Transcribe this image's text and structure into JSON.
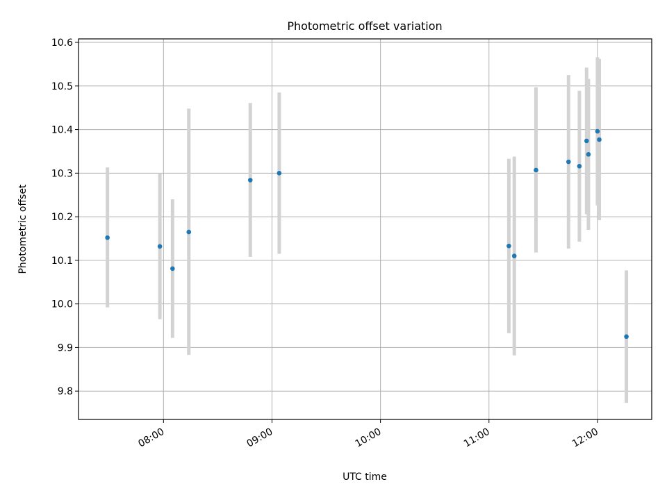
{
  "chart_data": {
    "type": "scatter",
    "title": "Photometric offset variation",
    "xlabel": "UTC time",
    "ylabel": "Photometric offset",
    "x_axis_type": "time",
    "xlim": [
      "07:13",
      "12:30"
    ],
    "ylim": [
      9.735,
      10.608
    ],
    "x_ticks": [
      "08:00",
      "09:00",
      "10:00",
      "11:00",
      "12:00"
    ],
    "y_ticks": [
      "9.8",
      "9.9",
      "10.0",
      "10.1",
      "10.2",
      "10.3",
      "10.4",
      "10.5",
      "10.6"
    ],
    "grid": true,
    "legend": "none",
    "point_color": "#1f77b4",
    "error_bar_color": "#d3d3d3",
    "points": [
      {
        "x": "07:29",
        "y": 10.152,
        "y_low": 9.992,
        "y_high": 10.313
      },
      {
        "x": "07:58",
        "y": 10.132,
        "y_low": 9.965,
        "y_high": 10.3
      },
      {
        "x": "08:05",
        "y": 10.081,
        "y_low": 9.922,
        "y_high": 10.24
      },
      {
        "x": "08:14",
        "y": 10.165,
        "y_low": 9.883,
        "y_high": 10.448
      },
      {
        "x": "08:48",
        "y": 10.284,
        "y_low": 10.108,
        "y_high": 10.461
      },
      {
        "x": "09:04",
        "y": 10.3,
        "y_low": 10.115,
        "y_high": 10.485
      },
      {
        "x": "11:11",
        "y": 10.133,
        "y_low": 9.933,
        "y_high": 10.333
      },
      {
        "x": "11:14",
        "y": 10.11,
        "y_low": 9.882,
        "y_high": 10.338
      },
      {
        "x": "11:26",
        "y": 10.307,
        "y_low": 10.118,
        "y_high": 10.497
      },
      {
        "x": "11:44",
        "y": 10.326,
        "y_low": 10.127,
        "y_high": 10.525
      },
      {
        "x": "11:50",
        "y": 10.316,
        "y_low": 10.143,
        "y_high": 10.489
      },
      {
        "x": "11:54",
        "y": 10.374,
        "y_low": 10.206,
        "y_high": 10.542
      },
      {
        "x": "11:55",
        "y": 10.343,
        "y_low": 10.17,
        "y_high": 10.516
      },
      {
        "x": "12:00",
        "y": 10.396,
        "y_low": 10.226,
        "y_high": 10.566
      },
      {
        "x": "12:01",
        "y": 10.377,
        "y_low": 10.192,
        "y_high": 10.562
      },
      {
        "x": "12:16",
        "y": 9.925,
        "y_low": 9.773,
        "y_high": 10.077
      }
    ]
  }
}
